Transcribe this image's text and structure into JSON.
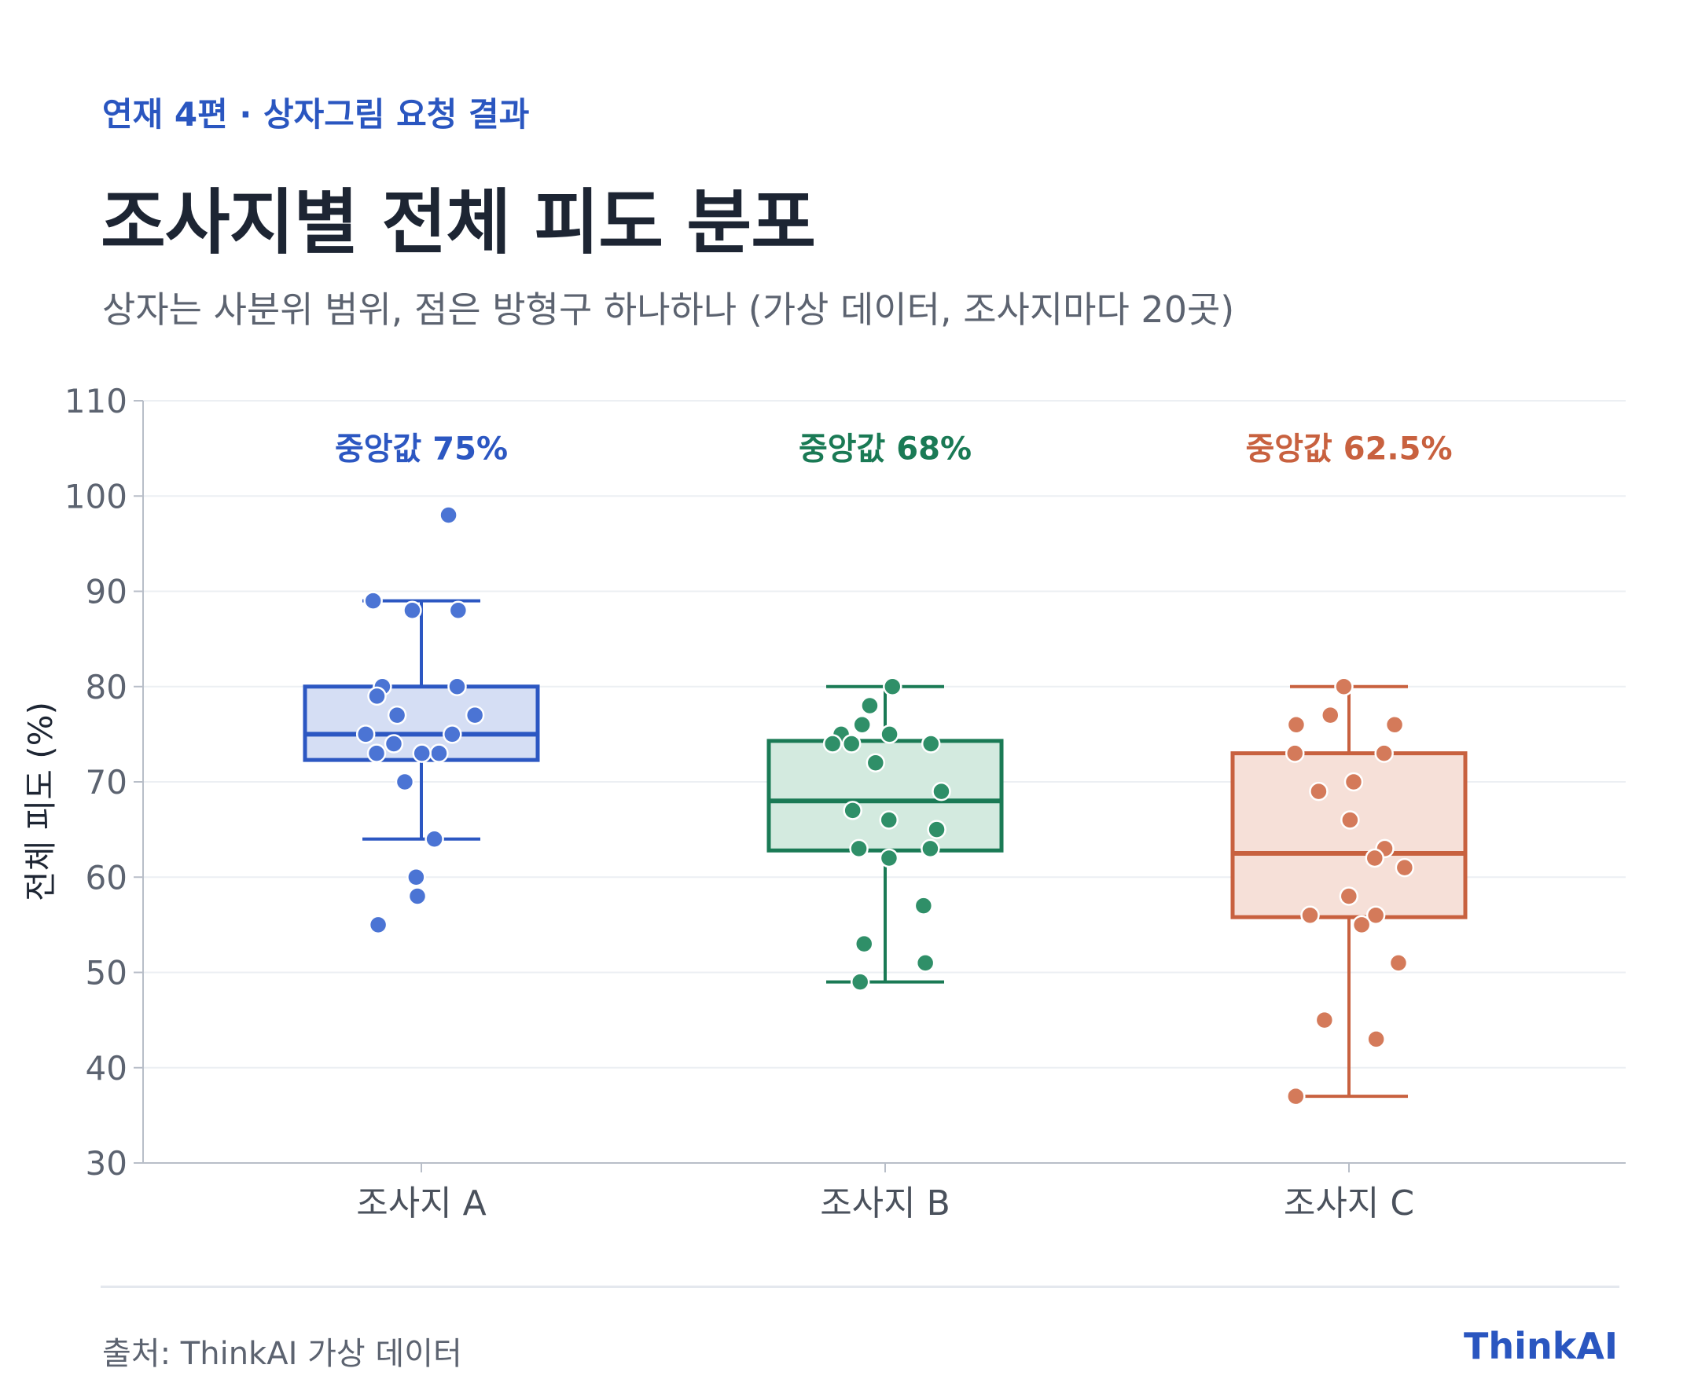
{
  "header": {
    "kicker": "연재 4편 · 상자그림 요청 결과",
    "title": "조사지별 전체 피도 분포",
    "subtitle": "상자는 사분위 범위, 점은 방형구 하나하나 (가상 데이터, 조사지마다 20곳)"
  },
  "footer": {
    "source": "출처: ThinkAI 가상 데이터",
    "brand": "ThinkAI"
  },
  "chart_data": {
    "type": "box",
    "ylabel": "전체 피도 (%)",
    "ylim": [
      30,
      110
    ],
    "yticks": [
      30,
      40,
      50,
      60,
      70,
      80,
      90,
      100,
      110
    ],
    "grid": true,
    "categories": [
      "조사지 A",
      "조사지 B",
      "조사지 C"
    ],
    "series": [
      {
        "category": "조사지 A",
        "color": "#2c57c2",
        "fill": "#d5def4",
        "point_color": "#4b74d4",
        "median_label": "중앙값 75%",
        "q1": 72.3,
        "median": 75,
        "q3": 80,
        "whisker_low": 64,
        "whisker_high": 89,
        "points": [
          98,
          89,
          88,
          88,
          80,
          80,
          79,
          77,
          77,
          75,
          75,
          74,
          73,
          73,
          73,
          70,
          64,
          60,
          58,
          55
        ]
      },
      {
        "category": "조사지 B",
        "color": "#1a7a55",
        "fill": "#d3eadf",
        "point_color": "#2f8f68",
        "median_label": "중앙값 68%",
        "q1": 62.8,
        "median": 68,
        "q3": 74.3,
        "whisker_low": 49,
        "whisker_high": 80,
        "points": [
          80,
          78,
          76,
          75,
          75,
          74,
          74,
          74,
          72,
          69,
          67,
          66,
          65,
          63,
          63,
          62,
          57,
          53,
          51,
          49
        ]
      },
      {
        "category": "조사지 C",
        "color": "#c8613f",
        "fill": "#f6e0d8",
        "point_color": "#d47a5a",
        "median_label": "중앙값 62.5%",
        "q1": 55.8,
        "median": 62.5,
        "q3": 73,
        "whisker_low": 37,
        "whisker_high": 80,
        "points": [
          80,
          77,
          76,
          76,
          73,
          73,
          70,
          69,
          66,
          63,
          62,
          61,
          58,
          56,
          56,
          55,
          51,
          45,
          43,
          37
        ]
      }
    ]
  }
}
